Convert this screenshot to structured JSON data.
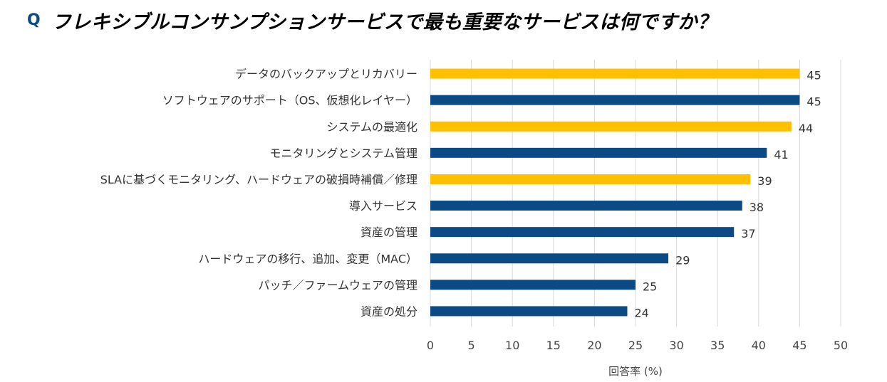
{
  "header": {
    "q_mark": "Q",
    "title": "フレキシブルコンサンプションサービスで最も重要なサービスは何ですか？"
  },
  "colors": {
    "accent_yellow": "#FFC000",
    "navy": "#0B4A85",
    "grid": "#d9d9d9"
  },
  "chart_data": {
    "type": "bar",
    "orientation": "horizontal",
    "title": "フレキシブルコンサンプションサービスで最も重要なサービスは何ですか？",
    "categories": [
      "データのバックアップとリカバリー",
      "ソフトウェアのサポート（OS、仮想化レイヤー）",
      "システムの最適化",
      "モニタリングとシステム管理",
      "SLAに基づくモニタリング、ハードウェアの破損時補償／修理",
      "導入サービス",
      "資産の管理",
      "ハードウェアの移行、追加、変更（MAC）",
      "パッチ／ファームウェアの管理",
      "資産の処分"
    ],
    "values": [
      45,
      45,
      44,
      41,
      39,
      38,
      37,
      29,
      25,
      24
    ],
    "bar_colors": [
      "#FFC000",
      "#0B4A85",
      "#FFC000",
      "#0B4A85",
      "#FFC000",
      "#0B4A85",
      "#0B4A85",
      "#0B4A85",
      "#0B4A85",
      "#0B4A85"
    ],
    "xlabel": "回答率 (%)",
    "ylabel": "",
    "xlim": [
      0,
      50
    ],
    "xticks": [
      0,
      5,
      10,
      15,
      20,
      25,
      30,
      35,
      40,
      45,
      50
    ],
    "grid": "vertical"
  }
}
